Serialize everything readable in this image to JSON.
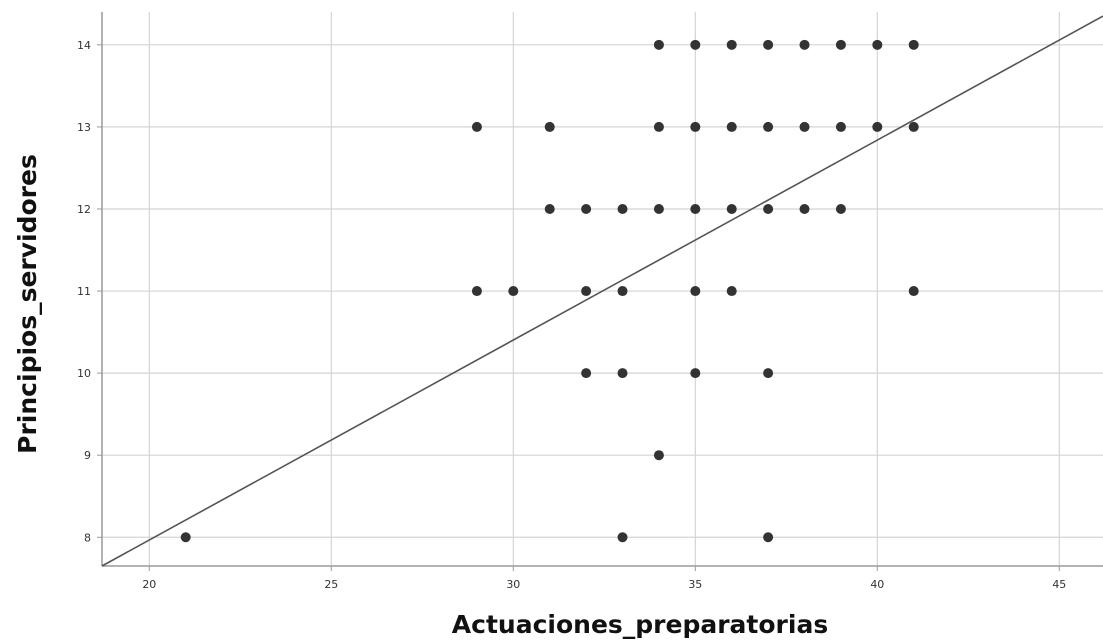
{
  "chart_data": {
    "type": "scatter",
    "xlabel": "Actuaciones_preparatorias",
    "ylabel": "Principios_servidores",
    "xlim": [
      18.7,
      46.2
    ],
    "ylim": [
      7.65,
      14.4
    ],
    "x_ticks": [
      "20",
      "25",
      "30",
      "35",
      "40",
      "45"
    ],
    "y_ticks": [
      "8",
      "9",
      "10",
      "11",
      "12",
      "13",
      "14"
    ],
    "grid": true,
    "points": [
      {
        "x": 34,
        "y": 14
      },
      {
        "x": 35,
        "y": 14
      },
      {
        "x": 36,
        "y": 14
      },
      {
        "x": 37,
        "y": 14
      },
      {
        "x": 38,
        "y": 14
      },
      {
        "x": 39,
        "y": 14
      },
      {
        "x": 40,
        "y": 14
      },
      {
        "x": 41,
        "y": 14
      },
      {
        "x": 29,
        "y": 13
      },
      {
        "x": 31,
        "y": 13
      },
      {
        "x": 34,
        "y": 13
      },
      {
        "x": 35,
        "y": 13
      },
      {
        "x": 36,
        "y": 13
      },
      {
        "x": 37,
        "y": 13
      },
      {
        "x": 38,
        "y": 13
      },
      {
        "x": 39,
        "y": 13
      },
      {
        "x": 40,
        "y": 13
      },
      {
        "x": 41,
        "y": 13
      },
      {
        "x": 31,
        "y": 12
      },
      {
        "x": 32,
        "y": 12
      },
      {
        "x": 33,
        "y": 12
      },
      {
        "x": 34,
        "y": 12
      },
      {
        "x": 35,
        "y": 12
      },
      {
        "x": 36,
        "y": 12
      },
      {
        "x": 37,
        "y": 12
      },
      {
        "x": 38,
        "y": 12
      },
      {
        "x": 39,
        "y": 12
      },
      {
        "x": 29,
        "y": 11
      },
      {
        "x": 30,
        "y": 11
      },
      {
        "x": 32,
        "y": 11
      },
      {
        "x": 33,
        "y": 11
      },
      {
        "x": 35,
        "y": 11
      },
      {
        "x": 36,
        "y": 11
      },
      {
        "x": 41,
        "y": 11
      },
      {
        "x": 32,
        "y": 10
      },
      {
        "x": 33,
        "y": 10
      },
      {
        "x": 35,
        "y": 10
      },
      {
        "x": 37,
        "y": 10
      },
      {
        "x": 34,
        "y": 9
      },
      {
        "x": 21,
        "y": 8
      },
      {
        "x": 33,
        "y": 8
      },
      {
        "x": 37,
        "y": 8
      }
    ],
    "fit_line": {
      "x": [
        18.7,
        46.2
      ],
      "y": [
        7.65,
        14.35
      ]
    },
    "colors": {
      "points": "#333333",
      "fit_line": "#555555",
      "grid": "#d4d4d4",
      "axis": "#999999"
    }
  }
}
